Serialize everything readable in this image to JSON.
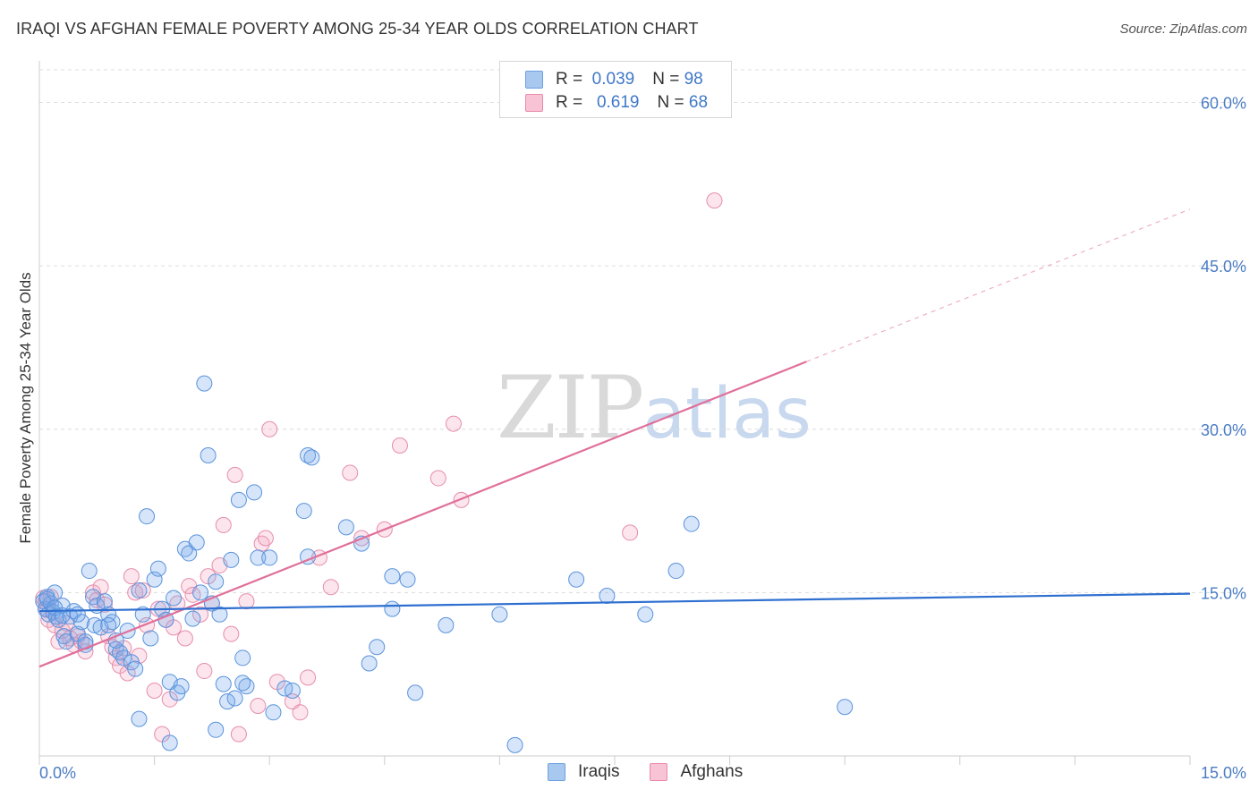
{
  "title": "IRAQI VS AFGHAN FEMALE POVERTY AMONG 25-34 YEAR OLDS CORRELATION CHART",
  "source": "Source: ZipAtlas.com",
  "watermark": {
    "zip": "ZIP",
    "atlas": "atlas"
  },
  "legend": {
    "rows": [
      {
        "r_label": "R =",
        "r_value": "0.039",
        "n_label": "N =",
        "n_value": "98",
        "color": "#a9c8f0",
        "border": "#6c9fe0"
      },
      {
        "r_label": "R =",
        "r_value": "0.619",
        "n_label": "N =",
        "n_value": "68",
        "color": "#f8c3d4",
        "border": "#e88aa8"
      }
    ]
  },
  "bottom_legend": [
    "Iraqis",
    "Afghans"
  ],
  "colors": {
    "iraqi_fill": "rgba(120,170,235,0.30)",
    "iraqi_stroke": "#5a93dc",
    "iraqi_line": "#2e6fd0",
    "afghan_fill": "rgba(245,170,195,0.30)",
    "afghan_stroke": "#e58eab",
    "afghan_line": "#e0709a"
  },
  "chart_data": {
    "type": "scatter",
    "title": "IRAQI VS AFGHAN FEMALE POVERTY AMONG 25-34 YEAR OLDS CORRELATION CHART",
    "xlabel": "",
    "ylabel": "Female Poverty Among 25-34 Year Olds",
    "xlim": [
      0,
      15
    ],
    "ylim": [
      0,
      63
    ],
    "x_tick_labels": [
      "0.0%",
      "15.0%"
    ],
    "y_ticks": [
      15,
      30,
      45,
      60
    ],
    "y_tick_labels": [
      "15.0%",
      "30.0%",
      "45.0%",
      "60.0%"
    ],
    "grid": true,
    "series": [
      {
        "name": "Iraqis",
        "R": 0.039,
        "N": 98,
        "trend": {
          "x": [
            0,
            15
          ],
          "y": [
            13.3,
            14.9
          ]
        },
        "points": [
          [
            0.05,
            14.2
          ],
          [
            0.08,
            13.5
          ],
          [
            0.1,
            14.6
          ],
          [
            0.12,
            13.0
          ],
          [
            0.15,
            14.0
          ],
          [
            0.18,
            13.2
          ],
          [
            0.2,
            15.0
          ],
          [
            0.22,
            12.8
          ],
          [
            0.25,
            12.5
          ],
          [
            0.3,
            13.8
          ],
          [
            0.32,
            11.0
          ],
          [
            0.35,
            10.5
          ],
          [
            0.4,
            12.8
          ],
          [
            0.45,
            13.3
          ],
          [
            0.5,
            11.2
          ],
          [
            0.55,
            12.3
          ],
          [
            0.6,
            10.2
          ],
          [
            0.65,
            17.0
          ],
          [
            0.7,
            14.6
          ],
          [
            0.72,
            12.0
          ],
          [
            0.75,
            13.8
          ],
          [
            0.8,
            11.8
          ],
          [
            0.85,
            14.2
          ],
          [
            0.9,
            13.0
          ],
          [
            0.95,
            12.3
          ],
          [
            1.0,
            9.8
          ],
          [
            1.05,
            9.5
          ],
          [
            1.1,
            9.0
          ],
          [
            1.15,
            11.5
          ],
          [
            1.2,
            8.6
          ],
          [
            1.25,
            8.0
          ],
          [
            1.3,
            15.2
          ],
          [
            1.35,
            13.0
          ],
          [
            1.4,
            22.0
          ],
          [
            1.45,
            10.8
          ],
          [
            1.5,
            16.2
          ],
          [
            1.55,
            17.2
          ],
          [
            1.6,
            13.5
          ],
          [
            1.65,
            12.5
          ],
          [
            1.7,
            6.8
          ],
          [
            1.75,
            14.5
          ],
          [
            1.8,
            5.8
          ],
          [
            1.85,
            6.4
          ],
          [
            1.9,
            19.0
          ],
          [
            1.95,
            18.6
          ],
          [
            2.0,
            12.6
          ],
          [
            2.05,
            19.6
          ],
          [
            2.1,
            15.0
          ],
          [
            2.15,
            34.2
          ],
          [
            2.2,
            27.6
          ],
          [
            2.25,
            14.0
          ],
          [
            2.3,
            16.0
          ],
          [
            2.35,
            13.0
          ],
          [
            2.4,
            6.6
          ],
          [
            2.45,
            5.0
          ],
          [
            2.5,
            18.0
          ],
          [
            2.55,
            5.3
          ],
          [
            2.6,
            23.5
          ],
          [
            2.65,
            9.0
          ],
          [
            2.7,
            6.4
          ],
          [
            2.8,
            24.2
          ],
          [
            2.85,
            18.2
          ],
          [
            3.0,
            18.2
          ],
          [
            3.05,
            4.0
          ],
          [
            3.2,
            6.2
          ],
          [
            3.3,
            6.0
          ],
          [
            3.45,
            22.5
          ],
          [
            3.5,
            27.6
          ],
          [
            3.55,
            27.4
          ],
          [
            3.5,
            18.3
          ],
          [
            4.0,
            21.0
          ],
          [
            4.2,
            19.5
          ],
          [
            4.3,
            8.5
          ],
          [
            4.4,
            10.0
          ],
          [
            4.6,
            16.5
          ],
          [
            4.8,
            16.2
          ],
          [
            4.6,
            13.5
          ],
          [
            4.9,
            5.8
          ],
          [
            5.3,
            12.0
          ],
          [
            6.0,
            13.0
          ],
          [
            6.2,
            1.0
          ],
          [
            7.0,
            16.2
          ],
          [
            7.4,
            14.7
          ],
          [
            7.9,
            13.0
          ],
          [
            8.3,
            17.0
          ],
          [
            8.5,
            21.3
          ],
          [
            10.5,
            4.5
          ],
          [
            0.1,
            14.4
          ],
          [
            0.2,
            13.6
          ],
          [
            0.3,
            12.9
          ],
          [
            0.5,
            13.0
          ],
          [
            0.6,
            10.5
          ],
          [
            0.9,
            12.0
          ],
          [
            1.0,
            10.6
          ],
          [
            1.3,
            3.4
          ],
          [
            1.7,
            1.2
          ],
          [
            2.3,
            2.4
          ],
          [
            2.65,
            6.7
          ]
        ]
      },
      {
        "name": "Afghans",
        "R": 0.619,
        "N": 68,
        "trend": {
          "x": [
            0,
            10.0
          ],
          "y": [
            8.2,
            36.2
          ]
        },
        "trend_dashed": {
          "x": [
            10.0,
            15
          ],
          "y": [
            36.2,
            50.2
          ]
        },
        "points": [
          [
            0.05,
            14.5
          ],
          [
            0.08,
            14.2
          ],
          [
            0.1,
            13.4
          ],
          [
            0.12,
            12.5
          ],
          [
            0.15,
            14.6
          ],
          [
            0.2,
            12.0
          ],
          [
            0.25,
            10.5
          ],
          [
            0.3,
            11.5
          ],
          [
            0.35,
            12.2
          ],
          [
            0.4,
            10.8
          ],
          [
            0.45,
            10.2
          ],
          [
            0.5,
            11.0
          ],
          [
            0.55,
            10.5
          ],
          [
            0.6,
            9.6
          ],
          [
            0.7,
            15.0
          ],
          [
            0.75,
            14.3
          ],
          [
            0.8,
            15.5
          ],
          [
            0.85,
            13.9
          ],
          [
            0.9,
            11.0
          ],
          [
            0.95,
            10.0
          ],
          [
            1.0,
            9.0
          ],
          [
            1.05,
            8.3
          ],
          [
            1.1,
            9.9
          ],
          [
            1.15,
            7.6
          ],
          [
            1.2,
            16.5
          ],
          [
            1.25,
            15.0
          ],
          [
            1.3,
            9.2
          ],
          [
            1.35,
            15.2
          ],
          [
            1.4,
            12.0
          ],
          [
            1.5,
            6.0
          ],
          [
            1.55,
            13.5
          ],
          [
            1.6,
            2.0
          ],
          [
            1.65,
            12.5
          ],
          [
            1.7,
            5.2
          ],
          [
            1.75,
            11.8
          ],
          [
            1.8,
            14.0
          ],
          [
            1.9,
            10.8
          ],
          [
            1.95,
            15.6
          ],
          [
            2.0,
            14.8
          ],
          [
            2.1,
            13.0
          ],
          [
            2.15,
            7.8
          ],
          [
            2.2,
            16.5
          ],
          [
            2.25,
            14.0
          ],
          [
            2.35,
            17.5
          ],
          [
            2.4,
            21.2
          ],
          [
            2.5,
            11.2
          ],
          [
            2.6,
            2.0
          ],
          [
            2.7,
            14.2
          ],
          [
            2.85,
            4.6
          ],
          [
            2.9,
            19.5
          ],
          [
            2.95,
            20.0
          ],
          [
            3.0,
            30.0
          ],
          [
            3.1,
            6.8
          ],
          [
            3.3,
            5.0
          ],
          [
            3.4,
            4.0
          ],
          [
            3.5,
            7.2
          ],
          [
            3.65,
            18.2
          ],
          [
            3.8,
            15.5
          ],
          [
            4.05,
            26.0
          ],
          [
            4.2,
            20.0
          ],
          [
            4.5,
            20.8
          ],
          [
            4.7,
            28.5
          ],
          [
            5.2,
            25.5
          ],
          [
            5.4,
            30.5
          ],
          [
            5.5,
            23.5
          ],
          [
            7.7,
            20.5
          ],
          [
            8.8,
            51.0
          ],
          [
            2.55,
            25.8
          ]
        ]
      }
    ]
  }
}
